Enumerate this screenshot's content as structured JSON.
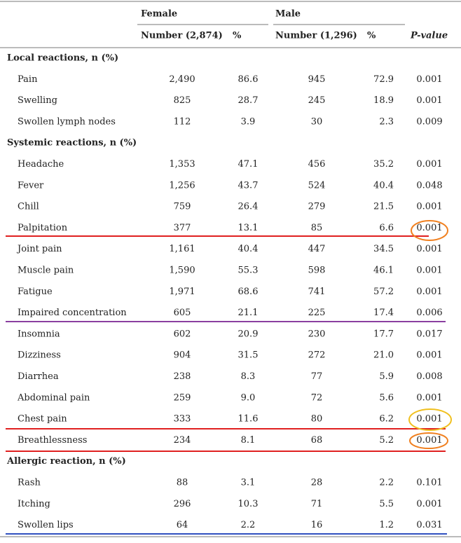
{
  "header": {
    "groups": [
      "Female",
      "Male"
    ],
    "columns": [
      "Number (2,874)",
      "%",
      "Number (1,296)",
      "%",
      "P-value"
    ]
  },
  "sections": [
    {
      "title": "Local reactions, n (%)",
      "rows": [
        [
          "Pain",
          "2,490",
          "86.6",
          "945",
          "72.9",
          "0.001"
        ],
        [
          "Swelling",
          "825",
          "28.7",
          "245",
          "18.9",
          "0.001"
        ],
        [
          "Swollen lymph nodes",
          "112",
          "3.9",
          "30",
          "2.3",
          "0.009"
        ]
      ]
    },
    {
      "title": "Systemic reactions, n (%)",
      "rows": [
        [
          "Headache",
          "1,353",
          "47.1",
          "456",
          "35.2",
          "0.001"
        ],
        [
          "Fever",
          "1,256",
          "43.7",
          "524",
          "40.4",
          "0.048"
        ],
        [
          "Chill",
          "759",
          "26.4",
          "279",
          "21.5",
          "0.001"
        ],
        [
          "Palpitation",
          "377",
          "13.1",
          "85",
          "6.6",
          "0.001"
        ],
        [
          "Joint pain",
          "1,161",
          "40.4",
          "447",
          "34.5",
          "0.001"
        ],
        [
          "Muscle pain",
          "1,590",
          "55.3",
          "598",
          "46.1",
          "0.001"
        ],
        [
          "Fatigue",
          "1,971",
          "68.6",
          "741",
          "57.2",
          "0.001"
        ],
        [
          "Impaired concentration",
          "605",
          "21.1",
          "225",
          "17.4",
          "0.006"
        ],
        [
          "Insomnia",
          "602",
          "20.9",
          "230",
          "17.7",
          "0.017"
        ],
        [
          "Dizziness",
          "904",
          "31.5",
          "272",
          "21.0",
          "0.001"
        ],
        [
          "Diarrhea",
          "238",
          "8.3",
          "77",
          "5.9",
          "0.008"
        ],
        [
          "Abdominal pain",
          "259",
          "9.0",
          "72",
          "5.6",
          "0.001"
        ],
        [
          "Chest pain",
          "333",
          "11.6",
          "80",
          "6.2",
          "0.001"
        ],
        [
          "Breathlessness",
          "234",
          "8.1",
          "68",
          "5.2",
          "0.001"
        ]
      ]
    },
    {
      "title": "Allergic reaction, n (%)",
      "rows": [
        [
          "Rash",
          "88",
          "3.1",
          "28",
          "2.2",
          "0.101"
        ],
        [
          "Itching",
          "296",
          "10.3",
          "71",
          "5.5",
          "0.001"
        ],
        [
          "Swollen lips",
          "64",
          "2.2",
          "16",
          "1.2",
          "0.031"
        ]
      ]
    }
  ]
}
